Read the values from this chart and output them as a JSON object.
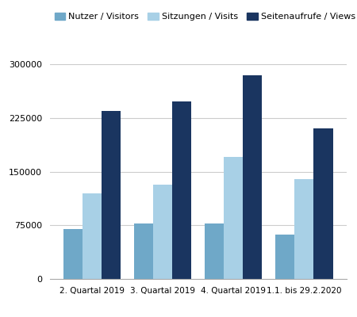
{
  "categories": [
    "2. Quartal 2019",
    "3. Quartal 2019",
    "4. Quartal 2019",
    "1.1. bis 29.2.2020"
  ],
  "series": [
    {
      "label": "Nutzer / Visitors",
      "color": "#6fa8c8",
      "values": [
        70000,
        77000,
        77000,
        62000
      ]
    },
    {
      "label": "Sitzungen / Visits",
      "color": "#a8d0e6",
      "values": [
        120000,
        132000,
        170000,
        140000
      ]
    },
    {
      "label": "Seitenaufrufe / Views",
      "color": "#1a3560",
      "values": [
        235000,
        248000,
        285000,
        210000
      ]
    }
  ],
  "ylim": [
    0,
    310000
  ],
  "yticks": [
    0,
    75000,
    150000,
    225000,
    300000
  ],
  "ytick_labels": [
    "0",
    "75000",
    "150000",
    "225000",
    "300000"
  ],
  "legend_fontsize": 8,
  "tick_fontsize": 8,
  "xtick_fontsize": 7.5,
  "background_color": "#ffffff",
  "grid_color": "#cccccc",
  "bar_width": 0.27
}
